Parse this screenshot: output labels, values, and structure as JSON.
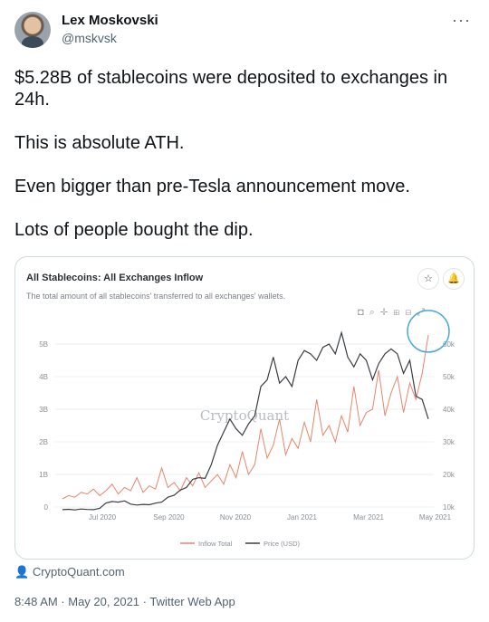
{
  "user": {
    "name": "Lex Moskovski",
    "handle": "@mskvsk"
  },
  "more_label": "···",
  "tweet_lines": [
    "$5.28B of stablecoins were deposited to exchanges in",
    "24h.",
    "This is absolute ATH.",
    "Even bigger than pre-Tesla announcement move.",
    "Lots of people bought the dip."
  ],
  "card": {
    "title": "All Stablecoins: All Exchanges Inflow",
    "subtitle": "The total amount of all stablecoins' transferred to all exchanges' wallets.",
    "star_icon": "☆",
    "bell_icon": "🔔"
  },
  "colors": {
    "inflow": "#e8856b",
    "price": "#3a3d42",
    "highlight": "#4aa8d8",
    "grid": "#eef0f2"
  },
  "chart_data": {
    "type": "line",
    "watermark": "CryptoQuant",
    "x_ticks": [
      "Jul 2020",
      "Sep 2020",
      "Nov 2020",
      "Jan 2021",
      "Mar 2021",
      "May 2021"
    ],
    "y_left_ticks": [
      "0",
      "1B",
      "2B",
      "3B",
      "4B",
      "5B"
    ],
    "y_right_ticks": [
      "10k",
      "20k",
      "30k",
      "40k",
      "50k",
      "60k"
    ],
    "ylim_left": [
      0,
      5.5
    ],
    "ylim_right": [
      10000,
      65000
    ],
    "legend": [
      "Inflow Total",
      "Price (USD)"
    ],
    "legend_position": "bottom",
    "series": [
      {
        "name": "Inflow Total",
        "axis": "left",
        "values": [
          0.25,
          0.35,
          0.3,
          0.45,
          0.4,
          0.55,
          0.35,
          0.5,
          0.7,
          0.4,
          0.6,
          0.5,
          0.9,
          0.45,
          0.65,
          0.55,
          1.2,
          0.6,
          0.75,
          0.5,
          0.9,
          0.65,
          1.05,
          0.6,
          0.8,
          1.0,
          0.7,
          1.3,
          0.9,
          1.7,
          1.0,
          1.3,
          2.4,
          1.5,
          1.9,
          2.7,
          1.6,
          2.1,
          1.8,
          2.6,
          2.0,
          3.3,
          2.2,
          2.5,
          2.0,
          2.8,
          2.3,
          3.7,
          2.5,
          2.9,
          3.0,
          4.2,
          2.8,
          3.5,
          4.0,
          2.9,
          3.8,
          3.3,
          4.1,
          5.28
        ]
      },
      {
        "name": "Price (USD)",
        "axis": "right",
        "values": [
          9200,
          9300,
          9100,
          9400,
          9250,
          9200,
          9600,
          11200,
          11700,
          11500,
          11900,
          10900,
          10600,
          10800,
          10700,
          11200,
          11500,
          13000,
          13600,
          15200,
          16000,
          18500,
          19000,
          18800,
          23000,
          29000,
          33000,
          37000,
          34000,
          32000,
          35500,
          38000,
          47000,
          49000,
          56000,
          48000,
          50000,
          47000,
          55000,
          58000,
          57000,
          55000,
          59000,
          60000,
          57000,
          63500,
          56000,
          53000,
          57000,
          55000,
          49000,
          54000,
          57000,
          58500,
          57000,
          51000,
          55000,
          44000,
          43000,
          37000
        ]
      }
    ]
  },
  "source": {
    "icon": "person-icon",
    "label": "CryptoQuant.com"
  },
  "meta": "8:48 AM · May 20, 2021 · Twitter Web App"
}
